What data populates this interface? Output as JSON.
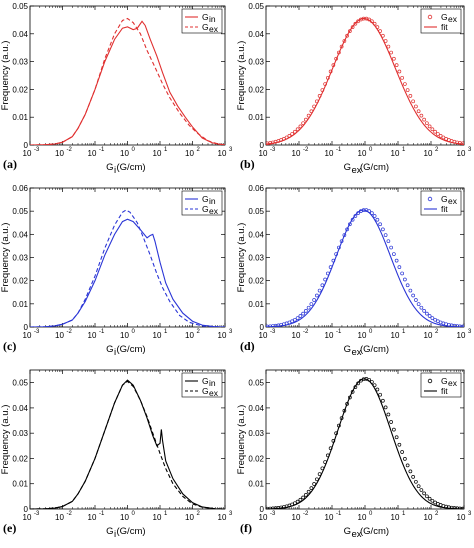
{
  "chart_data": [
    {
      "panel": "(a)",
      "type": "line",
      "xscale": "log",
      "xlim": [
        0.001,
        1000
      ],
      "ylim": [
        0,
        0.05
      ],
      "xticks": [
        "10",
        "10",
        "10",
        "10",
        "10",
        "10",
        "10"
      ],
      "xtick_exponents": [
        "-3",
        "-2",
        "-1",
        "0",
        "1",
        "2",
        "3"
      ],
      "yticks": [
        "0",
        "0.01",
        "0.02",
        "0.03",
        "0.04",
        "0.05"
      ],
      "xlabel_main": "G",
      "xlabel_sub": "i",
      "xlabel_rest": " (G/cm)",
      "ylabel": "Frequency (a.u.)",
      "color": "#e03030",
      "legend": [
        {
          "label": "G",
          "sub": "in",
          "style": "solid"
        },
        {
          "label": "G",
          "sub": "ex",
          "style": "dashed"
        }
      ],
      "series": [
        {
          "name": "Gin",
          "style": "solid",
          "points": [
            [
              0.001,
              0
            ],
            [
              0.003,
              0.0001
            ],
            [
              0.006,
              0.0004
            ],
            [
              0.01,
              0.001
            ],
            [
              0.02,
              0.003
            ],
            [
              0.03,
              0.006
            ],
            [
              0.05,
              0.011
            ],
            [
              0.1,
              0.02
            ],
            [
              0.2,
              0.03
            ],
            [
              0.4,
              0.038
            ],
            [
              0.7,
              0.042
            ],
            [
              1.0,
              0.0425
            ],
            [
              1.5,
              0.0415
            ],
            [
              2.0,
              0.042
            ],
            [
              2.8,
              0.0445
            ],
            [
              3.5,
              0.043
            ],
            [
              5,
              0.038
            ],
            [
              8,
              0.032
            ],
            [
              12,
              0.026
            ],
            [
              20,
              0.019
            ],
            [
              35,
              0.014
            ],
            [
              60,
              0.01
            ],
            [
              100,
              0.0065
            ],
            [
              200,
              0.0025
            ],
            [
              400,
              0.0008
            ],
            [
              700,
              0.0002
            ],
            [
              1000,
              0
            ]
          ]
        },
        {
          "name": "Gex",
          "style": "dashed",
          "points": [
            [
              0.001,
              0
            ],
            [
              0.003,
              0.0001
            ],
            [
              0.006,
              0.0004
            ],
            [
              0.01,
              0.001
            ],
            [
              0.02,
              0.003
            ],
            [
              0.03,
              0.006
            ],
            [
              0.05,
              0.011
            ],
            [
              0.1,
              0.02
            ],
            [
              0.2,
              0.031
            ],
            [
              0.4,
              0.04
            ],
            [
              0.7,
              0.0448
            ],
            [
              1.0,
              0.0455
            ],
            [
              1.5,
              0.044
            ],
            [
              2.5,
              0.04
            ],
            [
              4,
              0.034
            ],
            [
              7,
              0.028
            ],
            [
              12,
              0.022
            ],
            [
              20,
              0.017
            ],
            [
              40,
              0.0115
            ],
            [
              80,
              0.007
            ],
            [
              150,
              0.004
            ],
            [
              300,
              0.0015
            ],
            [
              600,
              0.0004
            ],
            [
              1000,
              0.0001
            ]
          ]
        }
      ]
    },
    {
      "panel": "(b)",
      "type": "scatter",
      "xscale": "log",
      "xlim": [
        0.001,
        1000
      ],
      "ylim": [
        0,
        0.05
      ],
      "xticks": [
        "10",
        "10",
        "10",
        "10",
        "10",
        "10",
        "10"
      ],
      "xtick_exponents": [
        "-3",
        "-2",
        "-1",
        "0",
        "1",
        "2",
        "3"
      ],
      "yticks": [
        "0",
        "0.01",
        "0.02",
        "0.03",
        "0.04",
        "0.05"
      ],
      "xlabel_main": "G",
      "xlabel_sub": "ex",
      "xlabel_rest": " (G/cm)",
      "ylabel": "Frequency (a.u.)",
      "color": "#e03030",
      "legend": [
        {
          "label": "G",
          "sub": "ex",
          "style": "marker"
        },
        {
          "label": "fit",
          "sub": "",
          "style": "solid"
        }
      ],
      "fit": {
        "peak": 0.0455,
        "mu_log10": -0.03,
        "sigma_log10": 0.95
      },
      "markers": {
        "peak": 0.0455,
        "mu_log10": 0.0,
        "sigma_log10": 1.0,
        "count": 72
      }
    },
    {
      "panel": "(c)",
      "type": "line",
      "xscale": "log",
      "xlim": [
        0.001,
        1000
      ],
      "ylim": [
        0,
        0.06
      ],
      "xticks": [
        "10",
        "10",
        "10",
        "10",
        "10",
        "10",
        "10"
      ],
      "xtick_exponents": [
        "-3",
        "-2",
        "-1",
        "0",
        "1",
        "2",
        "3"
      ],
      "yticks": [
        "0",
        "0.01",
        "0.02",
        "0.03",
        "0.04",
        "0.05",
        "0.06"
      ],
      "xlabel_main": "G",
      "xlabel_sub": "i",
      "xlabel_rest": " (G/cm)",
      "ylabel": "Frequency (a.u.)",
      "color": "#2a35d6",
      "legend": [
        {
          "label": "G",
          "sub": "in",
          "style": "solid"
        },
        {
          "label": "G",
          "sub": "ex",
          "style": "dashed"
        }
      ],
      "series": [
        {
          "name": "Gin",
          "style": "solid",
          "points": [
            [
              0.001,
              0
            ],
            [
              0.003,
              0.0001
            ],
            [
              0.006,
              0.0005
            ],
            [
              0.01,
              0.0012
            ],
            [
              0.02,
              0.003
            ],
            [
              0.03,
              0.006
            ],
            [
              0.05,
              0.011
            ],
            [
              0.1,
              0.02
            ],
            [
              0.2,
              0.031
            ],
            [
              0.4,
              0.04
            ],
            [
              0.7,
              0.0455
            ],
            [
              1.0,
              0.0465
            ],
            [
              1.5,
              0.0455
            ],
            [
              2.5,
              0.042
            ],
            [
              4,
              0.0385
            ],
            [
              5,
              0.0395
            ],
            [
              6,
              0.04
            ],
            [
              7,
              0.037
            ],
            [
              10,
              0.028
            ],
            [
              15,
              0.019
            ],
            [
              25,
              0.012
            ],
            [
              50,
              0.006
            ],
            [
              100,
              0.0025
            ],
            [
              200,
              0.0008
            ],
            [
              500,
              0.0001
            ],
            [
              1000,
              0
            ]
          ]
        },
        {
          "name": "Gex",
          "style": "dashed",
          "points": [
            [
              0.001,
              0
            ],
            [
              0.003,
              0.0001
            ],
            [
              0.006,
              0.0005
            ],
            [
              0.01,
              0.0012
            ],
            [
              0.02,
              0.003
            ],
            [
              0.03,
              0.006
            ],
            [
              0.05,
              0.012
            ],
            [
              0.1,
              0.022
            ],
            [
              0.2,
              0.034
            ],
            [
              0.4,
              0.044
            ],
            [
              0.7,
              0.0495
            ],
            [
              0.9,
              0.0505
            ],
            [
              1.2,
              0.0495
            ],
            [
              2,
              0.045
            ],
            [
              3,
              0.039
            ],
            [
              5,
              0.031
            ],
            [
              8,
              0.023
            ],
            [
              12,
              0.017
            ],
            [
              20,
              0.011
            ],
            [
              40,
              0.005
            ],
            [
              80,
              0.002
            ],
            [
              200,
              0.0004
            ],
            [
              1000,
              0
            ]
          ]
        }
      ]
    },
    {
      "panel": "(d)",
      "type": "scatter",
      "xscale": "log",
      "xlim": [
        0.001,
        1000
      ],
      "ylim": [
        0,
        0.06
      ],
      "xticks": [
        "10",
        "10",
        "10",
        "10",
        "10",
        "10",
        "10"
      ],
      "xtick_exponents": [
        "-3",
        "-2",
        "-1",
        "0",
        "1",
        "2",
        "3"
      ],
      "yticks": [
        "0",
        "0.01",
        "0.02",
        "0.03",
        "0.04",
        "0.05",
        "0.06"
      ],
      "xlabel_main": "G",
      "xlabel_sub": "ex",
      "xlabel_rest": " (G/cm)",
      "ylabel": "Frequency (a.u.)",
      "color": "#2a35d6",
      "legend": [
        {
          "label": "G",
          "sub": "ex",
          "style": "marker"
        },
        {
          "label": "fit",
          "sub": "",
          "style": "solid"
        }
      ],
      "fit": {
        "peak": 0.0505,
        "mu_log10": -0.05,
        "sigma_log10": 0.82
      },
      "markers": {
        "peak": 0.0505,
        "mu_log10": 0.0,
        "sigma_log10": 0.9,
        "count": 72
      }
    },
    {
      "panel": "(e)",
      "type": "line",
      "xscale": "log",
      "xlim": [
        0.001,
        1000
      ],
      "ylim": [
        0,
        0.055
      ],
      "xticks": [
        "10",
        "10",
        "10",
        "10",
        "10",
        "10",
        "10"
      ],
      "xtick_exponents": [
        "-3",
        "-2",
        "-1",
        "0",
        "1",
        "2",
        "3"
      ],
      "yticks": [
        "0",
        "0.01",
        "0.02",
        "0.03",
        "0.04",
        "0.05"
      ],
      "xlabel_main": "G",
      "xlabel_sub": "i",
      "xlabel_rest": " (G/cm)",
      "ylabel": "Frequency (a.u.)",
      "color": "#000000",
      "legend": [
        {
          "label": "G",
          "sub": "in",
          "style": "solid"
        },
        {
          "label": "G",
          "sub": "ex",
          "style": "dashed"
        }
      ],
      "series": [
        {
          "name": "Gin",
          "style": "solid",
          "points": [
            [
              0.001,
              0
            ],
            [
              0.003,
              0.0001
            ],
            [
              0.006,
              0.0004
            ],
            [
              0.01,
              0.001
            ],
            [
              0.02,
              0.003
            ],
            [
              0.03,
              0.006
            ],
            [
              0.05,
              0.011
            ],
            [
              0.1,
              0.02
            ],
            [
              0.2,
              0.031
            ],
            [
              0.4,
              0.042
            ],
            [
              0.7,
              0.049
            ],
            [
              1.0,
              0.051
            ],
            [
              1.5,
              0.049
            ],
            [
              2.5,
              0.043
            ],
            [
              4,
              0.036
            ],
            [
              6,
              0.029
            ],
            [
              8,
              0.025
            ],
            [
              10,
              0.026
            ],
            [
              11,
              0.0315
            ],
            [
              12,
              0.027
            ],
            [
              15,
              0.019
            ],
            [
              25,
              0.012
            ],
            [
              50,
              0.006
            ],
            [
              100,
              0.0025
            ],
            [
              200,
              0.0008
            ],
            [
              500,
              0.0001
            ],
            [
              1000,
              0
            ]
          ]
        },
        {
          "name": "Gex",
          "style": "dashed",
          "points": [
            [
              0.001,
              0
            ],
            [
              0.003,
              0.0001
            ],
            [
              0.006,
              0.0004
            ],
            [
              0.01,
              0.001
            ],
            [
              0.02,
              0.003
            ],
            [
              0.03,
              0.006
            ],
            [
              0.05,
              0.011
            ],
            [
              0.1,
              0.02
            ],
            [
              0.2,
              0.031
            ],
            [
              0.4,
              0.042
            ],
            [
              0.7,
              0.049
            ],
            [
              1.0,
              0.0505
            ],
            [
              1.5,
              0.0485
            ],
            [
              2.5,
              0.043
            ],
            [
              4,
              0.0365
            ],
            [
              6,
              0.03
            ],
            [
              10,
              0.022
            ],
            [
              15,
              0.016
            ],
            [
              25,
              0.01
            ],
            [
              50,
              0.005
            ],
            [
              100,
              0.002
            ],
            [
              200,
              0.0007
            ],
            [
              500,
              0.0001
            ],
            [
              1000,
              0
            ]
          ]
        }
      ]
    },
    {
      "panel": "(f)",
      "type": "scatter",
      "xscale": "log",
      "xlim": [
        0.001,
        1000
      ],
      "ylim": [
        0,
        0.055
      ],
      "xticks": [
        "10",
        "10",
        "10",
        "10",
        "10",
        "10",
        "10"
      ],
      "xtick_exponents": [
        "-3",
        "-2",
        "-1",
        "0",
        "1",
        "2",
        "3"
      ],
      "yticks": [
        "0",
        "0.01",
        "0.02",
        "0.03",
        "0.04",
        "0.05"
      ],
      "xlabel_main": "G",
      "xlabel_sub": "ex",
      "xlabel_rest": " (G/cm)",
      "ylabel": "Frequency (a.u.)",
      "color": "#000000",
      "legend": [
        {
          "label": "G",
          "sub": "ex",
          "style": "marker"
        },
        {
          "label": "fit",
          "sub": "",
          "style": "solid"
        }
      ],
      "fit": {
        "peak": 0.0515,
        "mu_log10": -0.02,
        "sigma_log10": 0.8
      },
      "markers": {
        "peak": 0.0515,
        "mu_log10": 0.02,
        "sigma_log10": 0.86,
        "count": 72
      }
    }
  ]
}
